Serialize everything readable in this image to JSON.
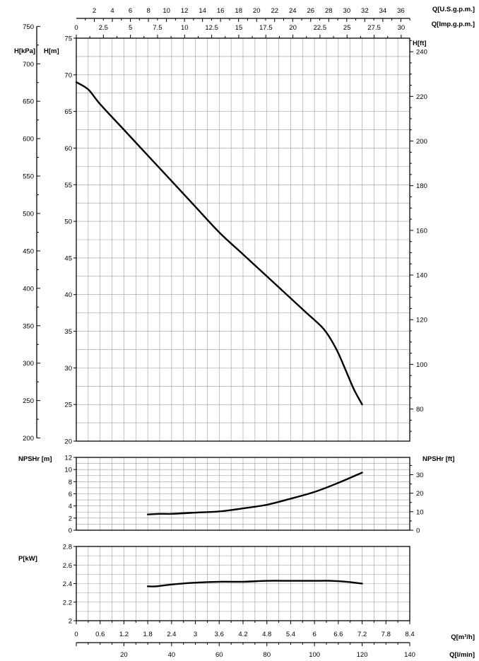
{
  "chart_data": [
    {
      "type": "line",
      "panel": "head",
      "xlabel": "Q[m³/h]",
      "ylabel": "H[m]",
      "ylabel_secondary": [
        "H[kPa]",
        "H[ft]"
      ],
      "grid": true,
      "xlim": [
        0,
        8.4
      ],
      "ylim": [
        20,
        75
      ],
      "series": [
        {
          "x": [
            0,
            0.3,
            0.6,
            1.2,
            1.8,
            2.4,
            3.0,
            3.6,
            4.2,
            4.8,
            5.4,
            5.8,
            6.2,
            6.4,
            6.6,
            6.8,
            7.0,
            7.2
          ],
          "y": [
            69,
            68,
            66,
            62.5,
            59,
            55.5,
            52,
            48.5,
            45.5,
            42.5,
            39.5,
            37.5,
            35.5,
            34,
            32,
            29.5,
            27,
            25
          ]
        }
      ],
      "kpa_ticks": [
        "200",
        "250",
        "300",
        "350",
        "400",
        "450",
        "500",
        "550",
        "600",
        "650",
        "700",
        "750"
      ],
      "m_ticks": [
        "20",
        "25",
        "30",
        "35",
        "40",
        "45",
        "50",
        "55",
        "60",
        "65",
        "70",
        "75"
      ],
      "ft_ticks": [
        "80",
        "100",
        "120",
        "140",
        "160",
        "180",
        "200",
        "220",
        "240"
      ],
      "usgpm_ticks": [
        "2",
        "4",
        "6",
        "8",
        "10",
        "12",
        "14",
        "16",
        "18",
        "20",
        "22",
        "24",
        "26",
        "28",
        "30",
        "32",
        "34",
        "36"
      ],
      "impgpm_ticks": [
        "0",
        "2.5",
        "5",
        "7.5",
        "10",
        "12.5",
        "15",
        "17.5",
        "20",
        "22.5",
        "25",
        "27.5",
        "30"
      ],
      "x_top_label_1": "Q[U.S.g.p.m.]",
      "x_top_label_2": "Q[Imp.g.p.m.]",
      "y_left_label_1": "H[kPa]",
      "y_left_label_2": "H[m]",
      "y_right_label": "H[ft]"
    },
    {
      "type": "line",
      "panel": "npsh",
      "xlabel": "Q[m³/h]",
      "ylabel": "NPSHr [m]",
      "ylabel_secondary": "NPSHr [ft]",
      "grid": true,
      "xlim": [
        0,
        8.4
      ],
      "ylim": [
        0,
        12
      ],
      "series": [
        {
          "x": [
            1.8,
            2.1,
            2.4,
            3.0,
            3.6,
            4.2,
            4.8,
            5.4,
            6.0,
            6.6,
            7.2
          ],
          "y": [
            2.6,
            2.7,
            2.7,
            2.9,
            3.1,
            3.6,
            4.2,
            5.2,
            6.3,
            7.8,
            9.5
          ]
        }
      ],
      "m_ticks": [
        "0",
        "2",
        "4",
        "6",
        "8",
        "10",
        "12"
      ],
      "ft_ticks": [
        "0",
        "10",
        "20",
        "30"
      ],
      "y_left_label": "NPSHr [m]",
      "y_right_label": "NPSHr [ft]"
    },
    {
      "type": "line",
      "panel": "power",
      "xlabel": "Q[m³/h]",
      "ylabel": "P[kW]",
      "grid": true,
      "xlim": [
        0,
        8.4
      ],
      "ylim": [
        2.0,
        2.8
      ],
      "series": [
        {
          "x": [
            1.8,
            2.0,
            2.4,
            3.0,
            3.6,
            4.2,
            4.8,
            5.4,
            6.0,
            6.4,
            6.8,
            7.2
          ],
          "y": [
            2.37,
            2.37,
            2.39,
            2.41,
            2.42,
            2.42,
            2.43,
            2.43,
            2.43,
            2.43,
            2.42,
            2.4
          ]
        }
      ],
      "kw_ticks": [
        "2",
        "2.2",
        "2.4",
        "2.6",
        "2.8"
      ],
      "y_left_label": "P[kW]",
      "m3h_ticks": [
        "0",
        "0.6",
        "1.2",
        "1.8",
        "2.4",
        "3",
        "3.6",
        "4.2",
        "4.8",
        "5.4",
        "6",
        "6.6",
        "7.2",
        "7.8",
        "8.4"
      ],
      "lmin_ticks": [
        "20",
        "40",
        "60",
        "80",
        "100",
        "120",
        "140"
      ],
      "x_bottom_label_1": "Q[m³/h]",
      "x_bottom_label_2": "Q[l/min]"
    }
  ]
}
